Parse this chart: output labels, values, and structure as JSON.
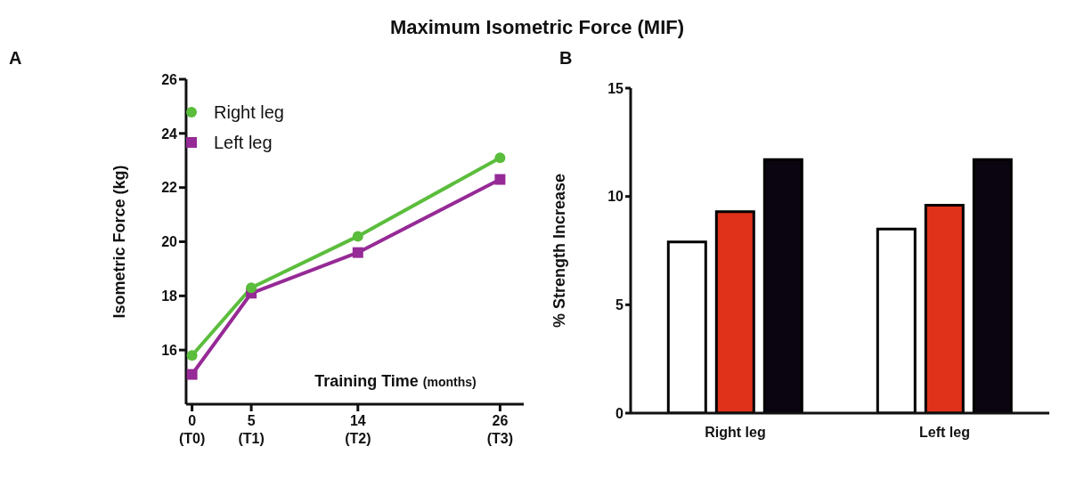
{
  "chart_data": [
    {
      "type": "line",
      "title": "Maximum Isometric Force (MIF)",
      "annotations": [
        "A",
        "(T0)",
        "(T1)",
        "(T2)",
        "(T3)"
      ],
      "xlabel": "Training Time $_{(months)}$",
      "ylabel": "Isometric Force  (kg)",
      "x": [
        0,
        5,
        14,
        26
      ],
      "series": [
        {
          "name": "Right leg",
          "color": "#5bbd3c",
          "marker": "circle",
          "values": [
            15.8,
            18.3,
            20.2,
            23.1
          ]
        },
        {
          "name": "Left leg",
          "color": "#962a96",
          "marker": "square",
          "values": [
            15.1,
            18.1,
            19.6,
            22.3
          ]
        }
      ],
      "xlim": [
        -0.5,
        28
      ],
      "xticks": [
        0,
        5,
        14,
        26
      ],
      "ylim": [
        14,
        26
      ],
      "yticks": [
        16,
        18,
        20,
        22,
        24,
        26
      ],
      "grid": false,
      "legend": "top left",
      "line_style": "solid"
    },
    {
      "type": "bar",
      "annotations": [
        "B"
      ],
      "ylabel": "% Strength Increase",
      "categories": [
        "Right leg",
        "Left leg"
      ],
      "series": [
        {
          "color": "#ffffff",
          "values": [
            7.9,
            8.5
          ]
        },
        {
          "color": "#e0321a",
          "values": [
            9.3,
            9.6
          ]
        },
        {
          "color": "#0a0510",
          "values": [
            11.7,
            11.7
          ]
        }
      ],
      "ylim": [
        0,
        15
      ],
      "yticks": [
        0,
        5,
        10,
        15
      ],
      "grid": false,
      "legend": false
    }
  ]
}
